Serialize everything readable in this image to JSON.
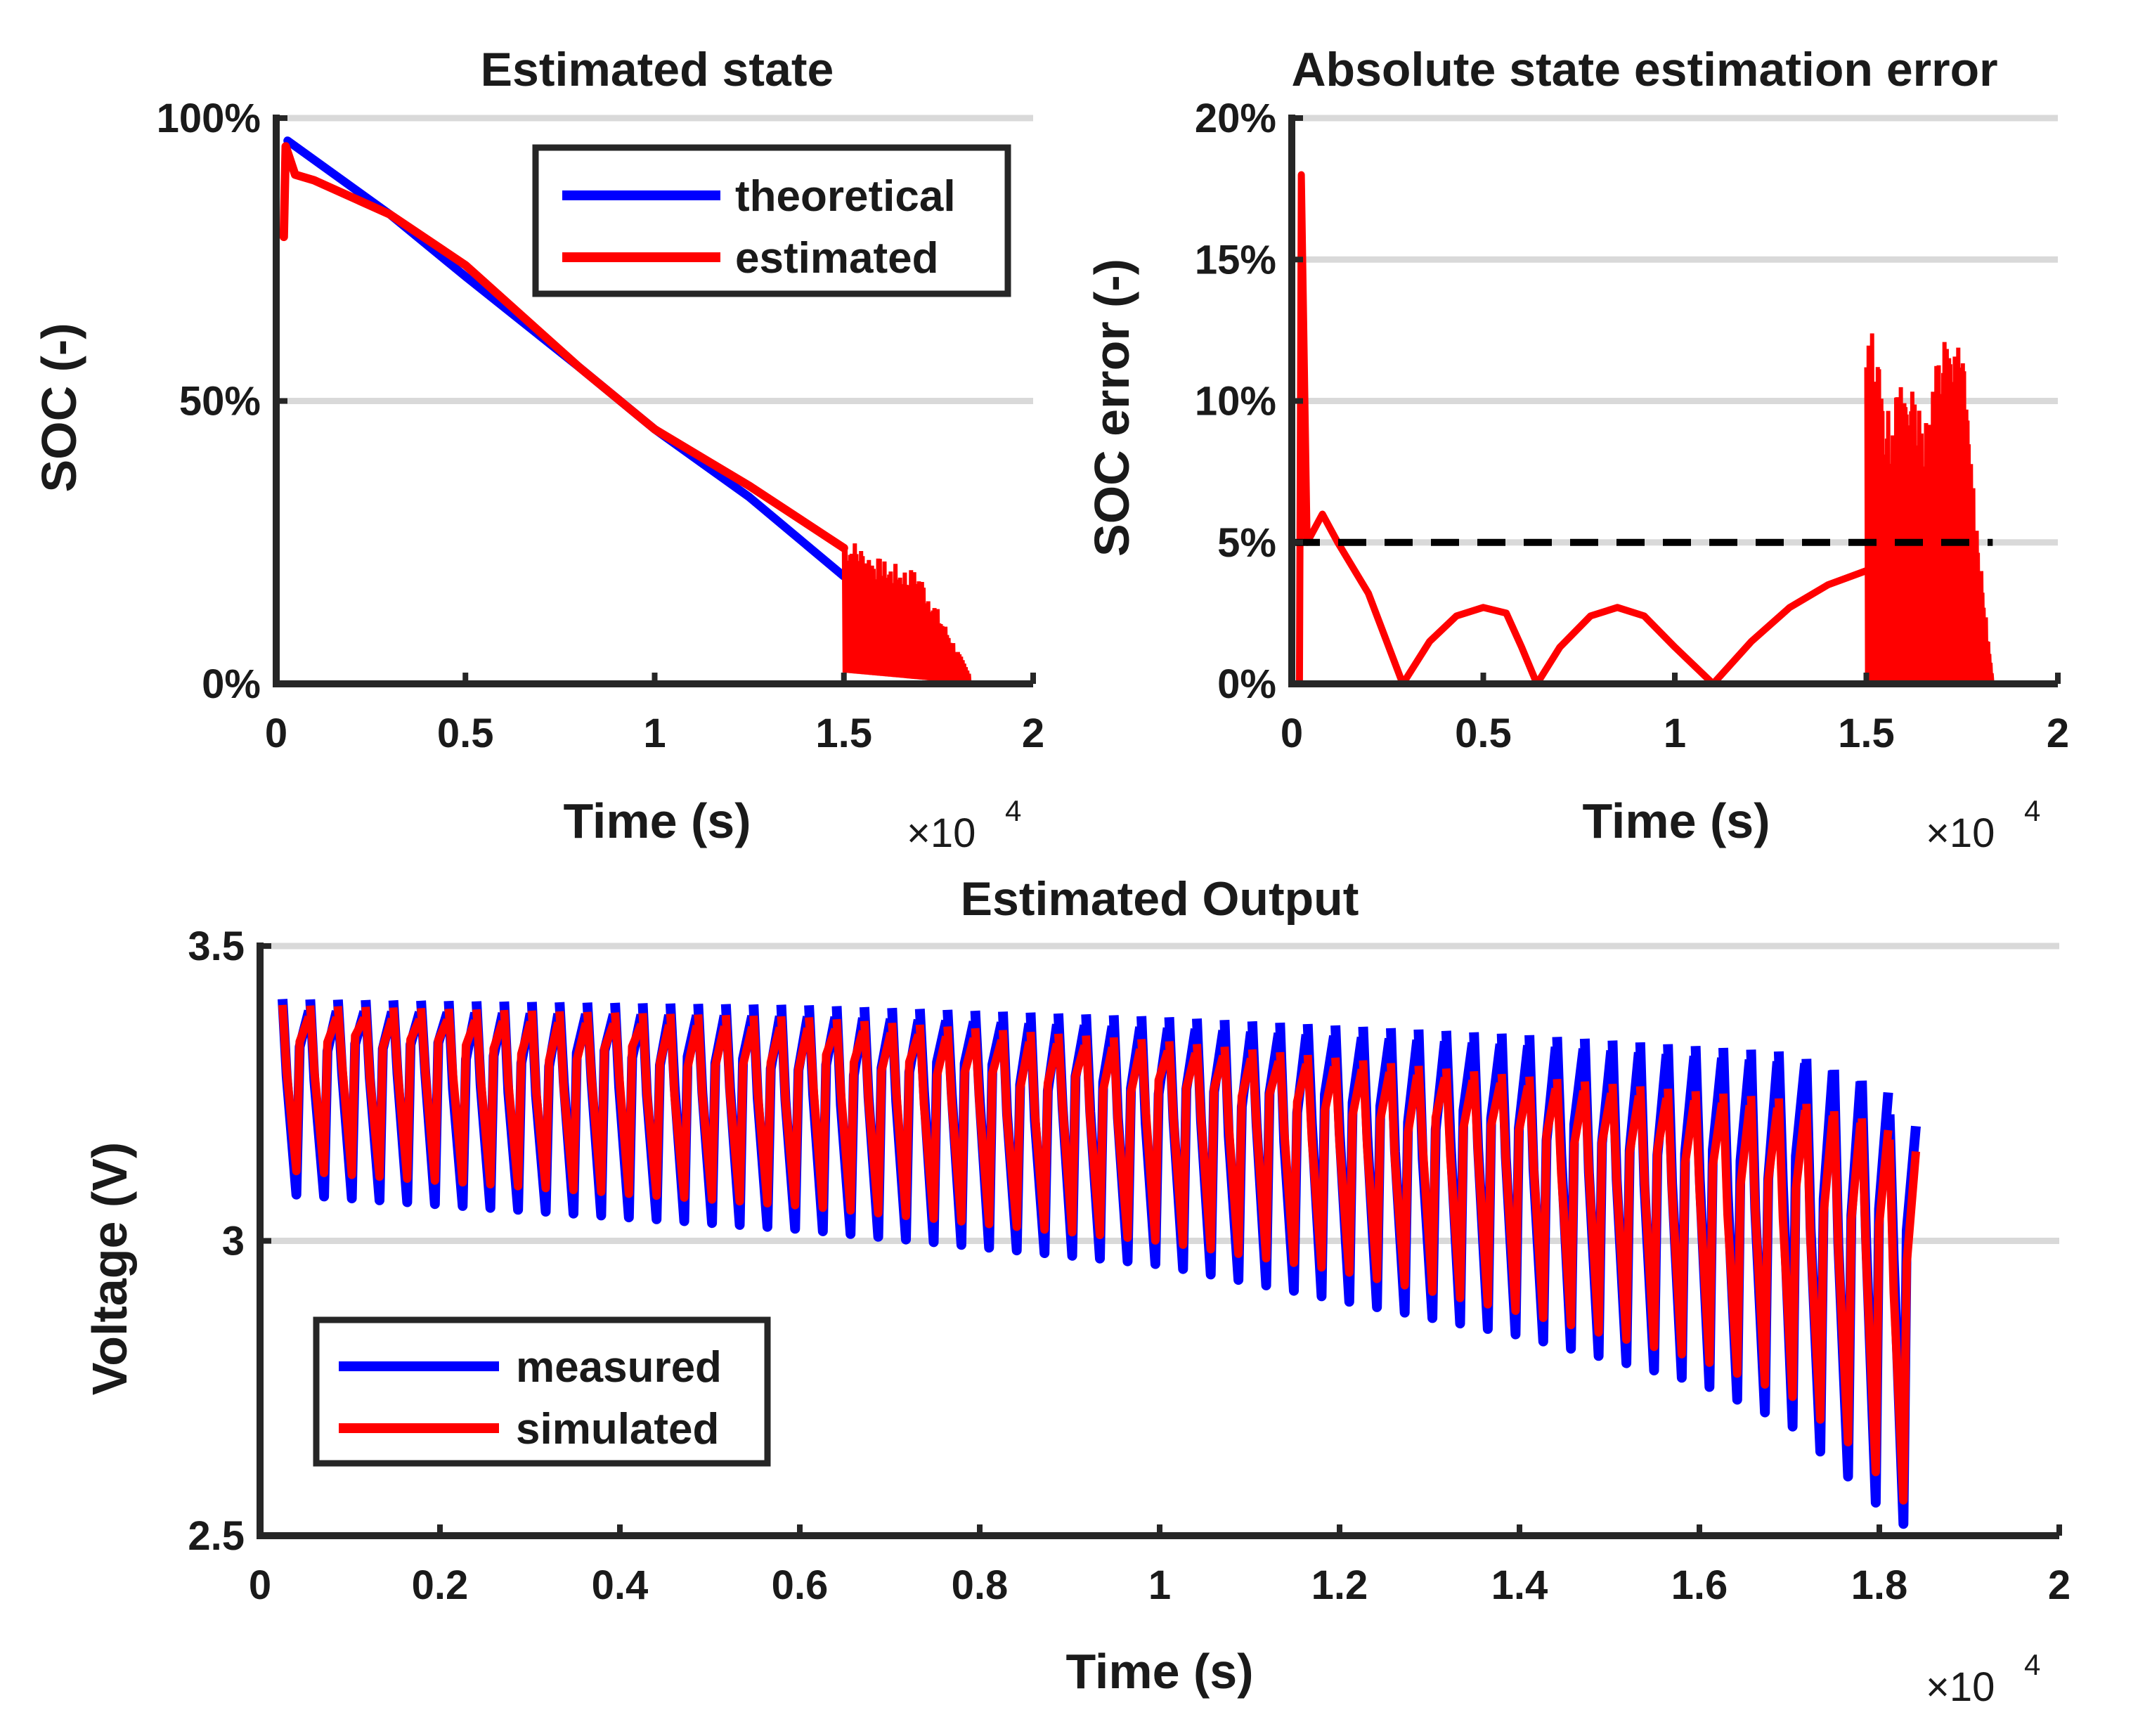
{
  "figure": {
    "multiplier_base": "×10",
    "multiplier_exp": "4"
  },
  "colors": {
    "blue": "#0000ff",
    "red": "#ff0000",
    "axis": "#262626",
    "grid": "#d9d9d9",
    "threshold": "#000000"
  },
  "chart_data": [
    {
      "id": "soc",
      "type": "line",
      "title": "Estimated state",
      "xlabel": "Time (s)",
      "ylabel": "SOC (-)",
      "xlim": [
        0,
        2
      ],
      "ylim": [
        0,
        1
      ],
      "x_scale": "×10^4",
      "xticks": [
        {
          "v": 0,
          "label": "0"
        },
        {
          "v": 0.5,
          "label": "0.5"
        },
        {
          "v": 1,
          "label": "1"
        },
        {
          "v": 1.5,
          "label": "1.5"
        },
        {
          "v": 2,
          "label": "2"
        }
      ],
      "yticks": [
        {
          "v": 0,
          "label": "0%"
        },
        {
          "v": 0.5,
          "label": "50%"
        },
        {
          "v": 1,
          "label": "100%"
        }
      ],
      "grid_y": [
        0.5,
        1
      ],
      "legend_position": "top-right",
      "series": [
        {
          "name": "theoretical",
          "color": "blue",
          "points": [
            [
              0.03,
              0.96
            ],
            [
              0.3,
              0.83
            ],
            [
              0.5,
              0.72
            ],
            [
              0.8,
              0.56
            ],
            [
              1.0,
              0.45
            ],
            [
              1.25,
              0.33
            ],
            [
              1.5,
              0.19
            ]
          ]
        },
        {
          "name": "estimated",
          "color": "red",
          "points": [
            [
              0.02,
              0.79
            ],
            [
              0.025,
              0.95
            ],
            [
              0.05,
              0.9
            ],
            [
              0.1,
              0.89
            ],
            [
              0.3,
              0.83
            ],
            [
              0.5,
              0.74
            ],
            [
              0.8,
              0.56
            ],
            [
              1.0,
              0.45
            ],
            [
              1.25,
              0.35
            ],
            [
              1.5,
              0.24
            ]
          ],
          "oscillation": {
            "x_start": 1.5,
            "x_end": 1.83,
            "upper": [
              [
                1.5,
                0.27
              ],
              [
                1.6,
                0.22
              ],
              [
                1.7,
                0.2
              ],
              [
                1.75,
                0.13
              ],
              [
                1.83,
                0.02
              ]
            ],
            "lower": [
              [
                1.5,
                0.02
              ],
              [
                1.83,
                0.0
              ]
            ]
          }
        }
      ]
    },
    {
      "id": "error",
      "type": "line",
      "title": "Absolute state estimation error",
      "xlabel": "Time (s)",
      "ylabel": "SOC error (-)",
      "xlim": [
        0,
        2
      ],
      "ylim": [
        0,
        0.2
      ],
      "x_scale": "×10^4",
      "xticks": [
        {
          "v": 0,
          "label": "0"
        },
        {
          "v": 0.5,
          "label": "0.5"
        },
        {
          "v": 1,
          "label": "1"
        },
        {
          "v": 1.5,
          "label": "1.5"
        },
        {
          "v": 2,
          "label": "2"
        }
      ],
      "yticks": [
        {
          "v": 0,
          "label": "0%"
        },
        {
          "v": 0.05,
          "label": "5%"
        },
        {
          "v": 0.1,
          "label": "10%"
        },
        {
          "v": 0.15,
          "label": "15%"
        },
        {
          "v": 0.2,
          "label": "20%"
        }
      ],
      "grid_y": [
        0.05,
        0.1,
        0.15,
        0.2
      ],
      "threshold": 0.05,
      "threshold_x": [
        0,
        1.83
      ],
      "series": [
        {
          "name": "error",
          "color": "red",
          "points": [
            [
              0.02,
              0.0
            ],
            [
              0.025,
              0.18
            ],
            [
              0.04,
              0.05
            ],
            [
              0.08,
              0.06
            ],
            [
              0.12,
              0.05
            ],
            [
              0.2,
              0.032
            ],
            [
              0.29,
              0.0
            ],
            [
              0.36,
              0.015
            ],
            [
              0.43,
              0.024
            ],
            [
              0.5,
              0.027
            ],
            [
              0.56,
              0.025
            ],
            [
              0.6,
              0.013
            ],
            [
              0.64,
              0.0
            ],
            [
              0.7,
              0.013
            ],
            [
              0.78,
              0.024
            ],
            [
              0.85,
              0.027
            ],
            [
              0.92,
              0.024
            ],
            [
              1.0,
              0.013
            ],
            [
              1.1,
              0.0
            ],
            [
              1.2,
              0.015
            ],
            [
              1.3,
              0.027
            ],
            [
              1.4,
              0.035
            ],
            [
              1.5,
              0.04
            ]
          ],
          "burst": {
            "x_start": 1.5,
            "x_end": 1.83,
            "upper": [
              [
                1.5,
                0.12
              ],
              [
                1.52,
                0.13
              ],
              [
                1.55,
                0.095
              ],
              [
                1.6,
                0.11
              ],
              [
                1.65,
                0.095
              ],
              [
                1.7,
                0.125
              ],
              [
                1.75,
                0.12
              ],
              [
                1.8,
                0.04
              ],
              [
                1.83,
                0.0
              ]
            ],
            "lower": [
              [
                1.5,
                0.0
              ],
              [
                1.83,
                0.0
              ]
            ]
          }
        }
      ]
    },
    {
      "id": "voltage",
      "type": "line",
      "title": "Estimated Output",
      "xlabel": "Time (s)",
      "ylabel": "Voltage (V)",
      "xlim": [
        0,
        2
      ],
      "ylim": [
        2.5,
        3.5
      ],
      "x_scale": "×10^4",
      "xticks": [
        {
          "v": 0,
          "label": "0"
        },
        {
          "v": 0.2,
          "label": "0.2"
        },
        {
          "v": 0.4,
          "label": "0.4"
        },
        {
          "v": 0.6,
          "label": "0.6"
        },
        {
          "v": 0.8,
          "label": "0.8"
        },
        {
          "v": 1,
          "label": "1"
        },
        {
          "v": 1.2,
          "label": "1.2"
        },
        {
          "v": 1.4,
          "label": "1.4"
        },
        {
          "v": 1.6,
          "label": "1.6"
        },
        {
          "v": 1.8,
          "label": "1.8"
        },
        {
          "v": 2,
          "label": "2"
        }
      ],
      "yticks": [
        {
          "v": 2.5,
          "label": "2.5"
        },
        {
          "v": 3,
          "label": "3"
        },
        {
          "v": 3.5,
          "label": "3.5"
        }
      ],
      "grid_y": [
        3.0,
        3.5
      ],
      "legend_position": "bottom-left",
      "pulse_start": 0.025,
      "pulse_end": 1.82,
      "pulse_period": 0.0308,
      "series": [
        {
          "name": "measured",
          "color": "blue",
          "envelope_high": [
            [
              0.025,
              3.41
            ],
            [
              0.6,
              3.4
            ],
            [
              1.0,
              3.38
            ],
            [
              1.4,
              3.35
            ],
            [
              1.7,
              3.32
            ],
            [
              1.8,
              3.26
            ],
            [
              1.82,
              3.18
            ]
          ],
          "envelope_low": [
            [
              0.025,
              3.08
            ],
            [
              0.6,
              3.02
            ],
            [
              1.0,
              2.96
            ],
            [
              1.2,
              2.9
            ],
            [
              1.4,
              2.84
            ],
            [
              1.6,
              2.76
            ],
            [
              1.7,
              2.69
            ],
            [
              1.78,
              2.58
            ],
            [
              1.82,
              2.52
            ]
          ]
        },
        {
          "name": "simulated",
          "color": "red",
          "envelope_high": [
            [
              0.025,
              3.4
            ],
            [
              0.6,
              3.38
            ],
            [
              1.0,
              3.34
            ],
            [
              1.4,
              3.28
            ],
            [
              1.7,
              3.24
            ],
            [
              1.8,
              3.2
            ],
            [
              1.82,
              3.15
            ]
          ],
          "envelope_low": [
            [
              0.025,
              3.12
            ],
            [
              0.6,
              3.06
            ],
            [
              1.0,
              3.0
            ],
            [
              1.2,
              2.95
            ],
            [
              1.4,
              2.88
            ],
            [
              1.6,
              2.8
            ],
            [
              1.7,
              2.74
            ],
            [
              1.78,
              2.64
            ],
            [
              1.82,
              2.56
            ]
          ]
        }
      ]
    }
  ]
}
